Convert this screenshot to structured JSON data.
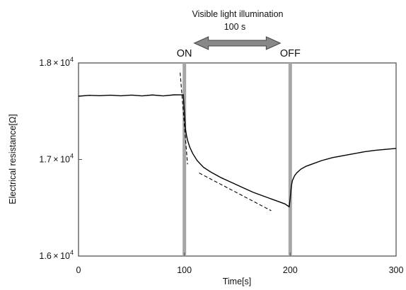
{
  "chart_data": {
    "type": "line",
    "xlabel": "Time[s]",
    "ylabel": "Electrical resistance[Ω]",
    "xlim": [
      0,
      300
    ],
    "ylim": [
      16000,
      18000
    ],
    "x_ticks": [
      0,
      100,
      200,
      300
    ],
    "x_tick_labels": [
      "0",
      "100",
      "200",
      "300"
    ],
    "y_ticks": [
      {
        "value": 16000,
        "mantissa": "1.6",
        "times": "×",
        "base": "10",
        "exp": "4"
      },
      {
        "value": 17000,
        "mantissa": "1.7",
        "times": "×",
        "base": "10",
        "exp": "4"
      },
      {
        "value": 18000,
        "mantissa": "1.8",
        "times": "×",
        "base": "10",
        "exp": "4"
      }
    ],
    "grid": false,
    "series": [
      {
        "line_style": "solid",
        "color": "#000000",
        "x": [
          0,
          10,
          20,
          30,
          40,
          50,
          60,
          70,
          80,
          90,
          99,
          100,
          101,
          102,
          103,
          105,
          108,
          112,
          118,
          125,
          135,
          145,
          155,
          165,
          175,
          185,
          195,
          199,
          200,
          201,
          202,
          204,
          206,
          210,
          215,
          220,
          230,
          240,
          250,
          260,
          270,
          280,
          290,
          300
        ],
        "y": [
          17660,
          17660,
          17665,
          17662,
          17664,
          17663,
          17663,
          17664,
          17663,
          17665,
          17670,
          17500,
          17320,
          17250,
          17200,
          17130,
          17060,
          16990,
          16920,
          16870,
          16810,
          16760,
          16710,
          16660,
          16620,
          16580,
          16540,
          16510,
          16600,
          16720,
          16780,
          16830,
          16860,
          16900,
          16930,
          16950,
          16990,
          17020,
          17040,
          17060,
          17080,
          17095,
          17105,
          17115
        ]
      },
      {
        "line_style": "dashed",
        "color": "#000000",
        "x": [
          96,
          103
        ],
        "y": [
          17900,
          16950
        ]
      },
      {
        "line_style": "dashed",
        "color": "#000000",
        "x": [
          114,
          182
        ],
        "y": [
          16860,
          16470
        ]
      }
    ],
    "vertical_markers": [
      {
        "x": 100,
        "label": "ON",
        "color": "#a6a6a6"
      },
      {
        "x": 200,
        "label": "OFF",
        "color": "#a6a6a6"
      }
    ],
    "annotation": {
      "line1": "Visible light illumination",
      "line2": "100 s",
      "arrow_color": "#888888",
      "arrow_x_start": 100,
      "arrow_x_end": 200
    }
  }
}
